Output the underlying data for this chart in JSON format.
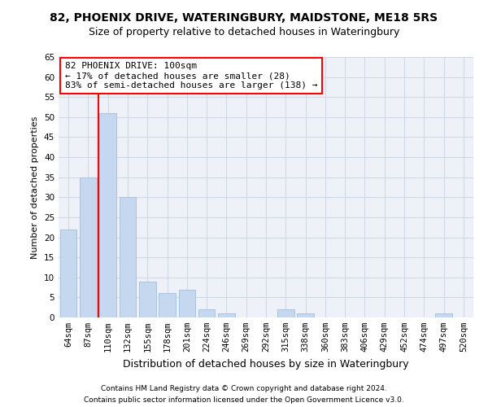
{
  "title1": "82, PHOENIX DRIVE, WATERINGBURY, MAIDSTONE, ME18 5RS",
  "title2": "Size of property relative to detached houses in Wateringbury",
  "xlabel": "Distribution of detached houses by size in Wateringbury",
  "ylabel": "Number of detached properties",
  "categories": [
    "64sqm",
    "87sqm",
    "110sqm",
    "132sqm",
    "155sqm",
    "178sqm",
    "201sqm",
    "224sqm",
    "246sqm",
    "269sqm",
    "292sqm",
    "315sqm",
    "338sqm",
    "360sqm",
    "383sqm",
    "406sqm",
    "429sqm",
    "452sqm",
    "474sqm",
    "497sqm",
    "520sqm"
  ],
  "values": [
    22,
    35,
    51,
    30,
    9,
    6,
    7,
    2,
    1,
    0,
    0,
    2,
    1,
    0,
    0,
    0,
    0,
    0,
    0,
    1,
    0
  ],
  "bar_color": "#c5d8f0",
  "bar_edgecolor": "#a8c4e0",
  "annotation_text": "82 PHOENIX DRIVE: 100sqm\n← 17% of detached houses are smaller (28)\n83% of semi-detached houses are larger (138) →",
  "annotation_box_color": "white",
  "annotation_box_edgecolor": "red",
  "vline_color": "red",
  "ylim": [
    0,
    65
  ],
  "yticks": [
    0,
    5,
    10,
    15,
    20,
    25,
    30,
    35,
    40,
    45,
    50,
    55,
    60,
    65
  ],
  "grid_color": "#d0d8e8",
  "background_color": "#eef2f8",
  "footer1": "Contains HM Land Registry data © Crown copyright and database right 2024.",
  "footer2": "Contains public sector information licensed under the Open Government Licence v3.0.",
  "title1_fontsize": 10,
  "title2_fontsize": 9,
  "xlabel_fontsize": 9,
  "ylabel_fontsize": 8,
  "tick_fontsize": 7.5,
  "annotation_fontsize": 8,
  "footer_fontsize": 6.5
}
